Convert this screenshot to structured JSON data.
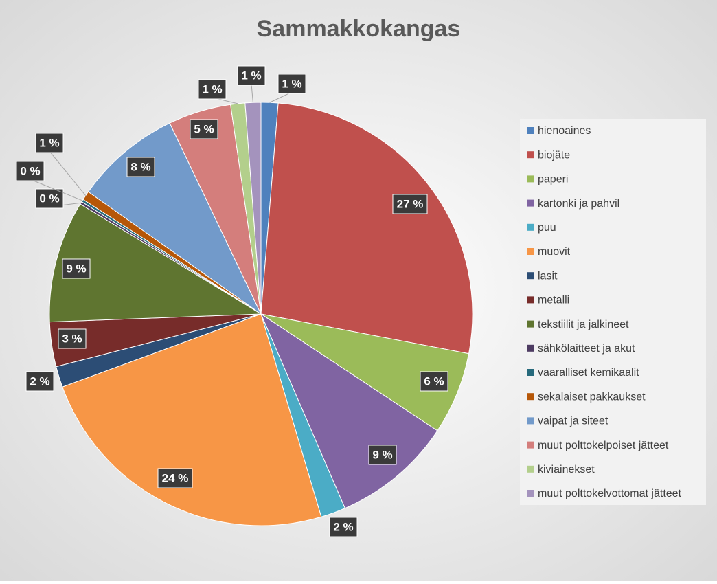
{
  "chart_data": {
    "type": "pie",
    "title": "Sammakkokangas",
    "categories": [
      "hienoaines",
      "biojäte",
      "paperi",
      "kartonki ja pahvil",
      "puu",
      "muovit",
      "lasit",
      "metalli",
      "tekstiilit ja jalkineet",
      "sähkölaitteet ja akut",
      "vaaralliset kemikaalit",
      "sekalaiset pakkaukset",
      "vaipat ja siteet",
      "muut polttokelpoiset jätteet",
      "kiviainekset",
      "muut polttokelvottomat jätteet"
    ],
    "values": [
      1.3,
      26.7,
      6.3,
      9.2,
      1.9,
      24.0,
      1.6,
      3.4,
      9.3,
      0.2,
      0.2,
      0.7,
      8.1,
      4.8,
      1.1,
      1.2
    ],
    "value_labels": [
      "1 %",
      "27 %",
      "6 %",
      "9 %",
      "2 %",
      "24 %",
      "2 %",
      "3 %",
      "9 %",
      "0 %",
      "0 %",
      "1 %",
      "8 %",
      "5 %",
      "1 %",
      "1 %"
    ],
    "colors": [
      "#4f81bd",
      "#c0504d",
      "#9bbb59",
      "#8064a2",
      "#4bacc6",
      "#f79646",
      "#2c4d75",
      "#772c2a",
      "#5f7530",
      "#4d3b62",
      "#276a7c",
      "#b65708",
      "#729aca",
      "#d47e7c",
      "#b3cf8c",
      "#a493bd"
    ],
    "legend": "right"
  }
}
